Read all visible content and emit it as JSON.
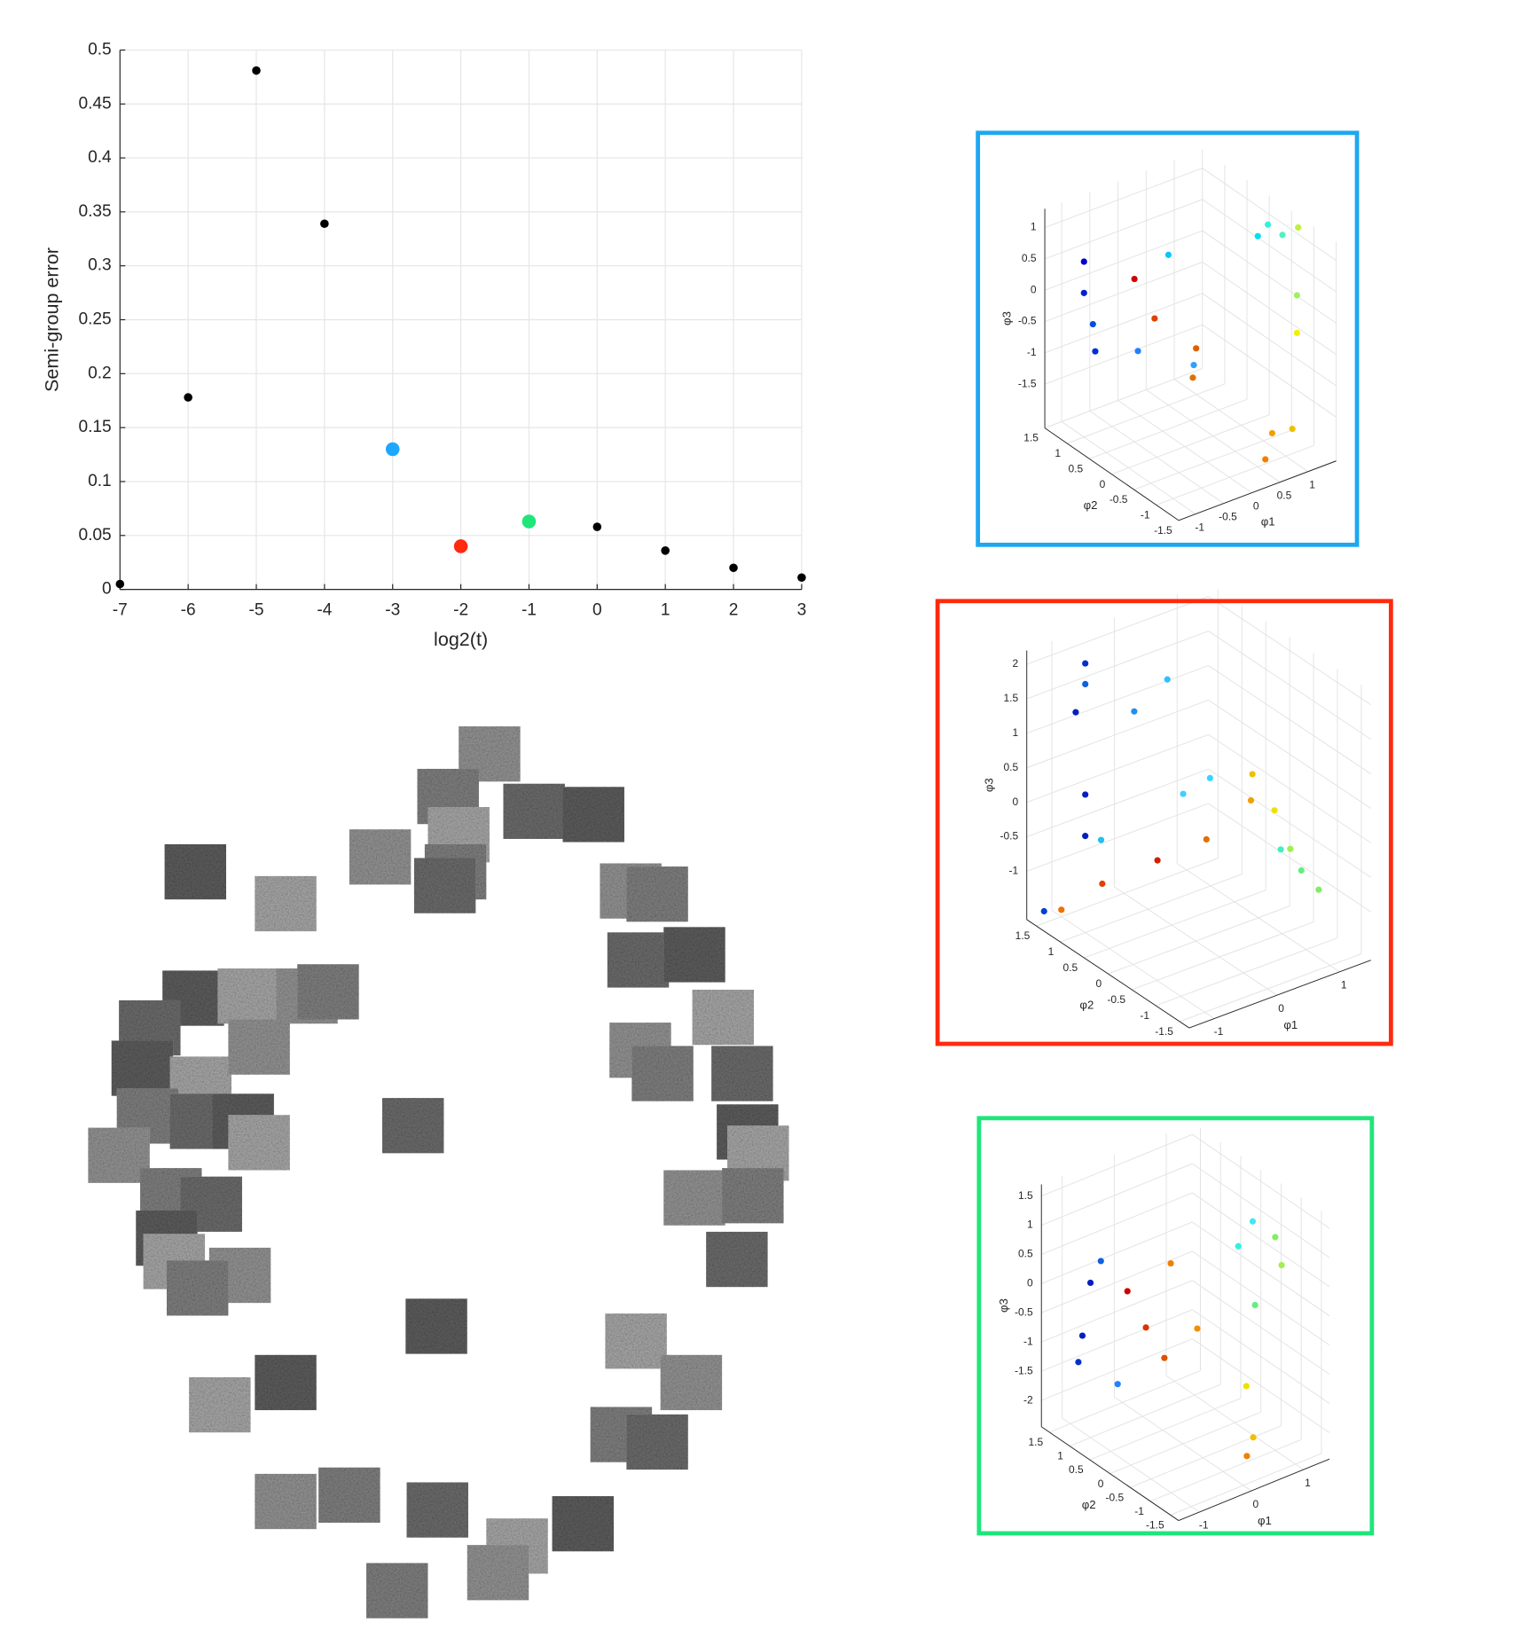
{
  "chart_data": [
    {
      "type": "scatter",
      "xlabel": "log2(t)",
      "ylabel": "Semi-group error",
      "x": [
        -7,
        -6,
        -5,
        -4,
        -3,
        -2,
        -1,
        0,
        1,
        2,
        3
      ],
      "values": [
        0.005,
        0.178,
        0.481,
        0.339,
        0.13,
        0.04,
        0.063,
        0.058,
        0.036,
        0.02,
        0.011
      ],
      "colors": [
        "#000000",
        "#000000",
        "#000000",
        "#000000",
        "#1ea7ff",
        "#ff2a0f",
        "#1ee67a",
        "#000000",
        "#000000",
        "#000000",
        "#000000"
      ],
      "xlim": [
        -7,
        3
      ],
      "ylim": [
        0,
        0.5
      ],
      "xticks": [
        -7,
        -6,
        -5,
        -4,
        -3,
        -2,
        -1,
        0,
        1,
        2,
        3
      ],
      "yticks": [
        0,
        0.05,
        0.1,
        0.15,
        0.2,
        0.25,
        0.3,
        0.35,
        0.4,
        0.45,
        0.5
      ],
      "grid": true
    },
    {
      "type": "scatter3d",
      "border_color": "#1ea7f0",
      "xlabel": "φ1",
      "ylabel": "φ2",
      "zlabel": "φ3",
      "xlim": [
        -1.3,
        1.5
      ],
      "ylim": [
        -1.5,
        1.5
      ],
      "zlim": [
        -2.2,
        1.3
      ],
      "xticks": [
        -1,
        -0.5,
        0,
        0.5,
        1
      ],
      "yticks": [
        -1.5,
        -1,
        -0.5,
        0,
        0.5,
        1,
        1.5
      ],
      "zticks": [
        -1.5,
        -1,
        -0.5,
        0,
        0.5,
        1
      ],
      "grid": true,
      "x": [
        -1,
        -1,
        -1,
        -0.8,
        -0.5,
        -0.3,
        0,
        0.2,
        0.5,
        1,
        1.1,
        0.9,
        1.3,
        1.2,
        1.2,
        0.6,
        0.4,
        0.3,
        0.8,
        -0.2
      ],
      "y": [
        1,
        1,
        0.8,
        1,
        0.5,
        0.3,
        -0.2,
        0,
        1,
        -0.6,
        -0.8,
        -0.5,
        -0.9,
        -1,
        -1,
        -1.2,
        -1.3,
        0.2,
        -1.4,
        0.8
      ],
      "z": [
        0.6,
        0.1,
        -0.3,
        -0.9,
        0.4,
        -0.2,
        -0.8,
        -0.7,
        0.2,
        1.3,
        1.2,
        1.1,
        1.3,
        0.3,
        -0.3,
        -1.6,
        -1.9,
        -1.3,
        -1.5,
        -1
      ],
      "colors": [
        "#0000c8",
        "#0020d0",
        "#0050e0",
        "#0030d0",
        "#d00000",
        "#e04000",
        "#30a0ff",
        "#e06000",
        "#00c8ff",
        "#30f0e0",
        "#50f0c0",
        "#00e0f0",
        "#c0f040",
        "#a0f060",
        "#f0f000",
        "#f0a000",
        "#f08000",
        "#e07000",
        "#f0c000",
        "#2080ff"
      ]
    },
    {
      "type": "scatter3d",
      "border_color": "#ff2a0f",
      "xlabel": "φ1",
      "ylabel": "φ2",
      "zlabel": "φ3",
      "xlim": [
        -1.4,
        1.5
      ],
      "ylim": [
        -1.7,
        1.7
      ],
      "zlim": [
        -1.7,
        2.2
      ],
      "xticks": [
        -1,
        0,
        1
      ],
      "yticks": [
        -1.5,
        -1,
        -0.5,
        0,
        0.5,
        1,
        1.5
      ],
      "zticks": [
        -1,
        -0.5,
        0,
        0.5,
        1,
        1.5,
        2
      ],
      "grid": true,
      "x": [
        -1,
        -1,
        -1,
        -0.6,
        -0.3,
        -1,
        -1,
        -0.9,
        -0.2,
        0,
        0.5,
        0.6,
        0.8,
        0.9,
        1,
        0.9,
        1.2,
        0.4,
        0,
        -0.5,
        -1.2,
        -1
      ],
      "y": [
        1,
        1,
        1.2,
        0.5,
        0.2,
        1,
        1,
        0.8,
        0,
        -0.3,
        -0.5,
        -0.4,
        -0.6,
        -0.8,
        -0.9,
        -0.6,
        -1,
        0.3,
        0.8,
        1.3,
        1.6,
        1.5
      ],
      "z": [
        2.2,
        1.9,
        1.4,
        1.6,
        2.1,
        0.3,
        -0.3,
        -0.3,
        0.5,
        0.8,
        0.4,
        0.7,
        0.2,
        -0.3,
        -0.6,
        -0.4,
        -0.9,
        -0.5,
        -0.9,
        -1.3,
        -1.6,
        -1.6
      ],
      "colors": [
        "#0030d0",
        "#1060e0",
        "#0020c0",
        "#2090f0",
        "#30c0ff",
        "#0020c0",
        "#0020c0",
        "#20c0f0",
        "#40d0ff",
        "#30d8ff",
        "#f0a000",
        "#f0c000",
        "#f0e000",
        "#a0f050",
        "#60f080",
        "#40f0c0",
        "#80f060",
        "#e07000",
        "#d02000",
        "#e04000",
        "#0040d0",
        "#f07000"
      ]
    },
    {
      "type": "scatter3d",
      "border_color": "#1ee67a",
      "xlabel": "φ1",
      "ylabel": "φ2",
      "zlabel": "φ3",
      "xlim": [
        -1.4,
        1.5
      ],
      "ylim": [
        -1.7,
        1.7
      ],
      "zlim": [
        -2.45,
        1.7
      ],
      "xticks": [
        -1,
        0,
        1
      ],
      "yticks": [
        -1.5,
        -1,
        -0.5,
        0,
        0.5,
        1,
        1.5
      ],
      "zticks": [
        -2,
        -1.5,
        -1,
        -0.5,
        0,
        0.5,
        1,
        1.5
      ],
      "grid": true,
      "x": [
        -1,
        -0.8,
        -1,
        -1,
        -0.6,
        -0.4,
        -0.2,
        0,
        0.2,
        0.6,
        0.8,
        1,
        1.2,
        1,
        0.6,
        0.3,
        0.5,
        -0.4
      ],
      "y": [
        1,
        1,
        1.2,
        1.3,
        0.6,
        0.4,
        0.2,
        0.3,
        -0.1,
        -0.6,
        -0.7,
        -1,
        -0.9,
        -0.5,
        -0.8,
        -1.2,
        -1.1,
        1.1
      ],
      "z": [
        0.2,
        0.5,
        -0.8,
        -1.3,
        0.1,
        -0.5,
        -1,
        0.5,
        -0.5,
        1,
        1.4,
        1.2,
        0.6,
        -0.2,
        -1.3,
        -2.2,
        -2,
        -1.8
      ],
      "colors": [
        "#0020c0",
        "#1060e0",
        "#0020c0",
        "#0030d0",
        "#d00000",
        "#e03000",
        "#e05000",
        "#f08000",
        "#f09000",
        "#30f0e0",
        "#40e8f0",
        "#80f060",
        "#a0f050",
        "#60f080",
        "#f0e000",
        "#f08000",
        "#f0c000",
        "#2080ff"
      ]
    }
  ]
}
